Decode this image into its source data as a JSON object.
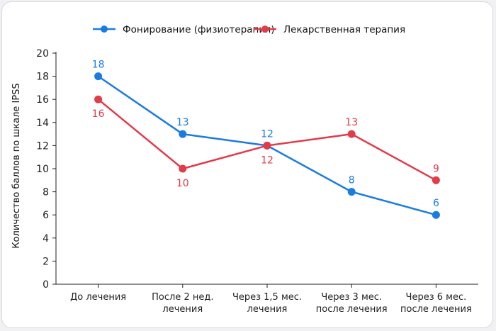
{
  "colors": {
    "series1": "#1a7ce0",
    "series2": "#e23b4a",
    "axis": "#222222",
    "grid": "#e6e6e6"
  },
  "chart_data": {
    "type": "line",
    "ylabel": "Количество баллов по шкале IPSS",
    "xlabel": "",
    "ylim": [
      0,
      20
    ],
    "yticks": [
      0,
      2,
      4,
      6,
      8,
      10,
      12,
      14,
      16,
      18,
      20
    ],
    "grid": false,
    "legend_position": "top-center",
    "categories": [
      [
        "До лечения"
      ],
      [
        "После 2 нед.",
        "лечения"
      ],
      [
        "Через 1,5 мес.",
        "лечения"
      ],
      [
        "Через 3 мес.",
        "после лечения"
      ],
      [
        "Через 6 мес.",
        "после лечения"
      ]
    ],
    "series": [
      {
        "name": "Фонирование (физиотерапия)",
        "values": [
          18,
          13,
          12,
          8,
          6
        ],
        "label_position": [
          "above",
          "above",
          "above",
          "above",
          "above"
        ]
      },
      {
        "name": "Лекарственная терапия",
        "values": [
          16,
          10,
          12,
          13,
          9
        ],
        "label_position": [
          "below",
          "below",
          "below",
          "above",
          "above"
        ]
      }
    ]
  }
}
